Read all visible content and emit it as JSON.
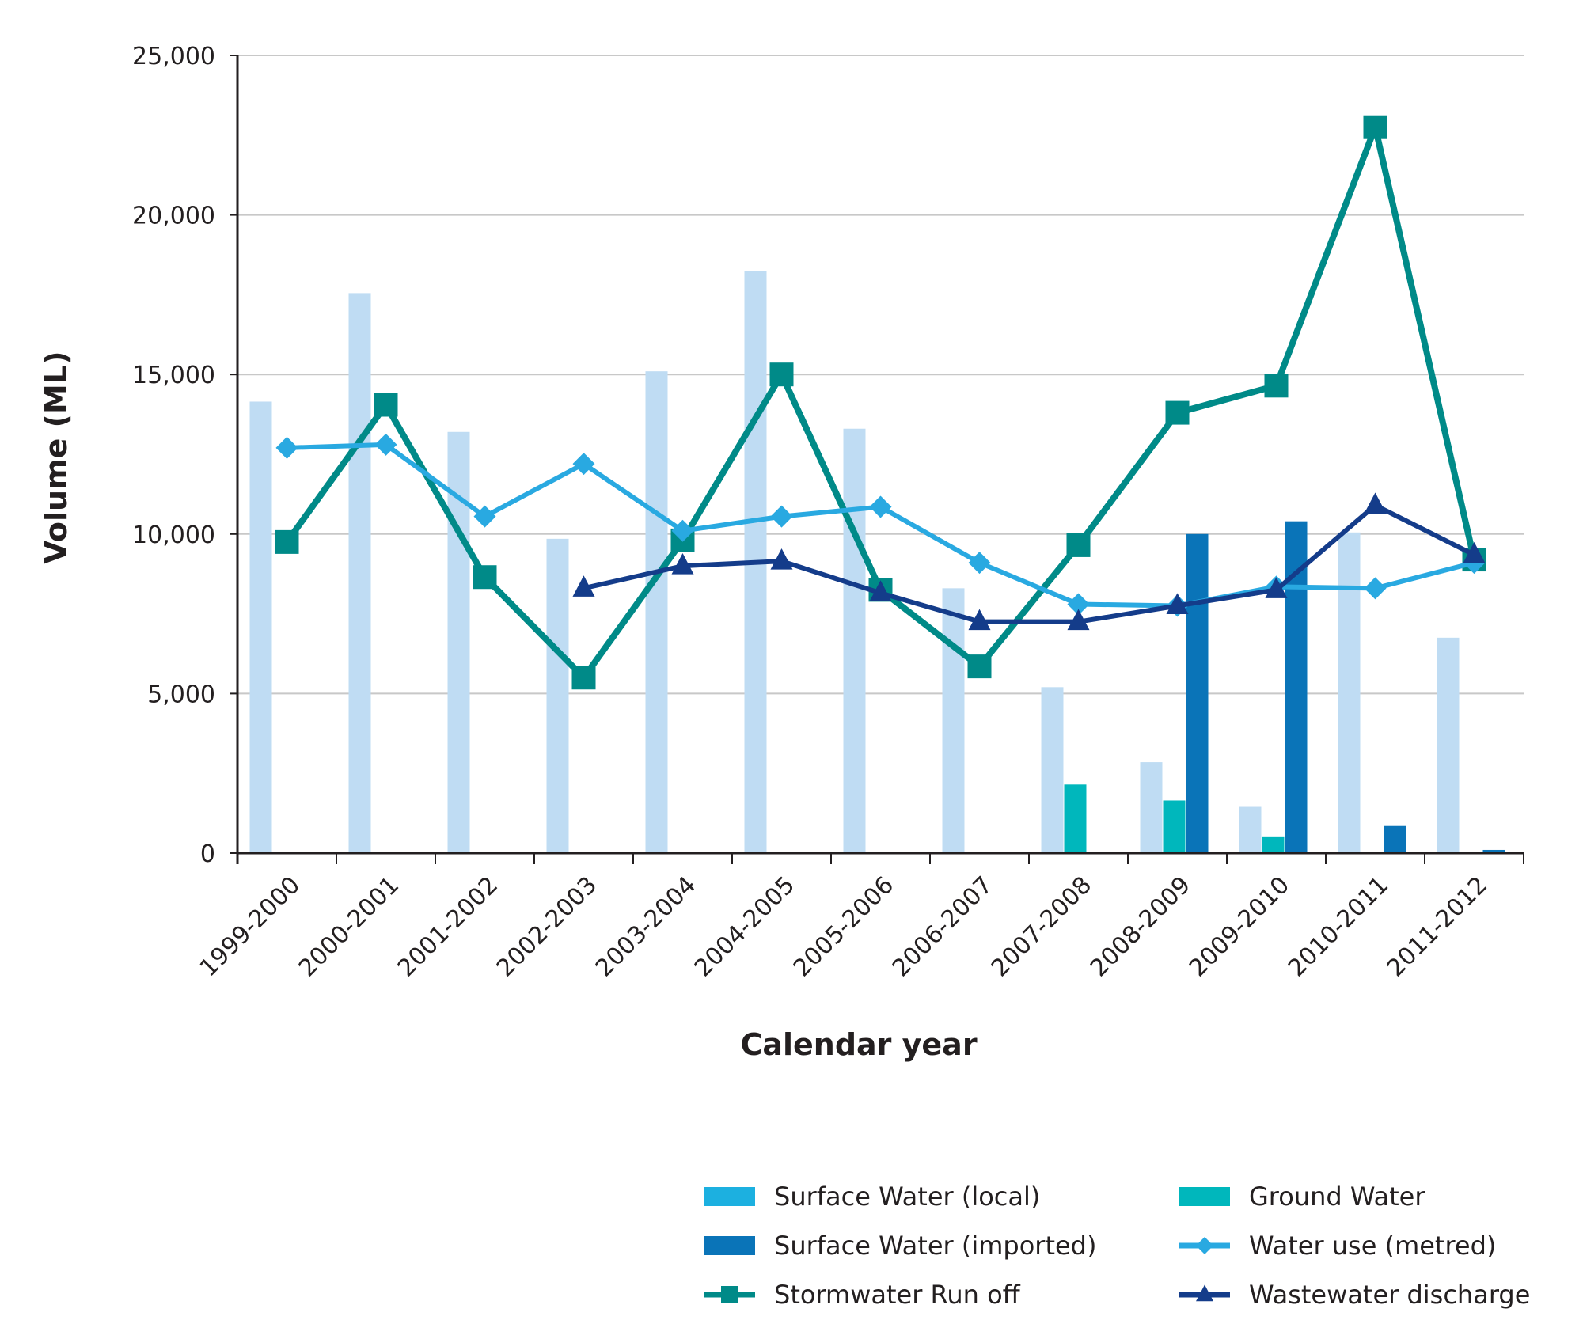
{
  "chart_data": {
    "type": "bar",
    "xlabel": "Calendar year",
    "ylabel": "Volume (ML)",
    "ylim": [
      0,
      25000
    ],
    "yticks": [
      0,
      5000,
      10000,
      15000,
      20000,
      25000
    ],
    "ytick_labels": [
      "0",
      "5,000",
      "10,000",
      "15,000",
      "20,000",
      "25,000"
    ],
    "grid": true,
    "legend_position": "bottom-right",
    "categories": [
      "1999-2000",
      "2000-2001",
      "2001-2002",
      "2002-2003",
      "2003-2004",
      "2004-2005",
      "2005-2006",
      "2006-2007",
      "2007-2008",
      "2008-2009",
      "2009-2010",
      "2010-2011",
      "2011-2012"
    ],
    "bar_series": [
      {
        "name": "Surface Water (local)",
        "color": "#bfdcf3",
        "legend_color": "#1cb0e0",
        "values": [
          14150,
          17550,
          13200,
          9850,
          15100,
          18250,
          13300,
          8300,
          5200,
          2850,
          1450,
          10050,
          6750
        ]
      },
      {
        "name": "Ground Water",
        "color": "#00b7bc",
        "values": [
          null,
          null,
          null,
          null,
          null,
          null,
          null,
          null,
          2150,
          1650,
          500,
          null,
          null
        ]
      },
      {
        "name": "Surface Water (imported)",
        "color": "#0a74b8",
        "values": [
          null,
          null,
          null,
          null,
          null,
          null,
          null,
          null,
          null,
          10000,
          10400,
          850,
          100
        ]
      }
    ],
    "line_series": [
      {
        "name": "Stormwater Run off",
        "color": "#008a88",
        "marker": "square",
        "values": [
          9750,
          14050,
          8650,
          5500,
          9800,
          15000,
          8250,
          5850,
          9650,
          13800,
          14650,
          22750,
          9200
        ]
      },
      {
        "name": "Water use (metred)",
        "color": "#29a9e1",
        "marker": "diamond",
        "values": [
          12700,
          12800,
          10550,
          12200,
          10100,
          10550,
          10850,
          9100,
          7800,
          7750,
          8350,
          8300,
          9100
        ]
      },
      {
        "name": "Wastewater discharge",
        "color": "#143c8a",
        "marker": "triangle",
        "values": [
          null,
          null,
          null,
          8300,
          9000,
          9150,
          8150,
          7250,
          7250,
          7750,
          8250,
          10900,
          9350
        ]
      }
    ],
    "legend": [
      {
        "label": "Surface Water (local)",
        "kind": "bar",
        "color": "#1cb0e0"
      },
      {
        "label": "Ground Water",
        "kind": "bar",
        "color": "#00b7bc"
      },
      {
        "label": "Surface Water (imported)",
        "kind": "bar",
        "color": "#0a74b8"
      },
      {
        "label": "Water use (metred)",
        "kind": "line",
        "color": "#29a9e1",
        "marker": "diamond"
      },
      {
        "label": "Stormwater Run off",
        "kind": "line",
        "color": "#008a88",
        "marker": "square"
      },
      {
        "label": "Wastewater discharge",
        "kind": "line",
        "color": "#143c8a",
        "marker": "triangle"
      }
    ]
  }
}
